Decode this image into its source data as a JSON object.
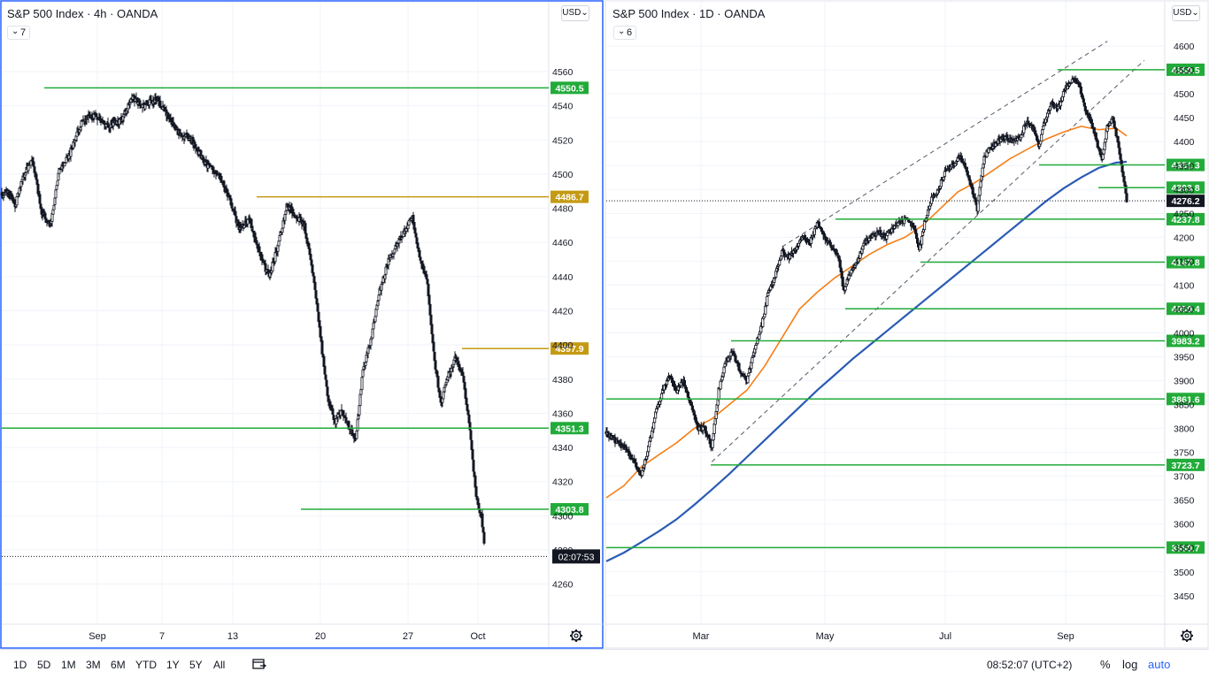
{
  "panes": [
    {
      "title": "S&P 500 Index · 4h · OANDA",
      "interval_count": "7",
      "currency": "USD",
      "countdown": "02:07:53"
    },
    {
      "title": "S&P 500 Index · 1D · OANDA",
      "interval_count": "6",
      "currency": "USD"
    }
  ],
  "colors": {
    "green_level": "#22ab3a",
    "gold_level": "#c49a12",
    "ma_orange": "#f57f17",
    "ma_blue": "#2a5bb4",
    "candle": "#131722",
    "last_price_bg": "#131722"
  },
  "chart_data": [
    {
      "type": "candlestick",
      "title": "S&P 500 Index · 4h · OANDA",
      "x_ticks": [
        "Sep",
        "7",
        "13",
        "20",
        "27",
        "Oct"
      ],
      "y_ticks": [
        4260,
        4280,
        4300,
        4320,
        4340,
        4360,
        4380,
        4400,
        4420,
        4440,
        4460,
        4480,
        4500,
        4520,
        4540,
        4560
      ],
      "ylim": [
        4250,
        4575
      ],
      "close_path": [
        [
          0,
          4487
        ],
        [
          8,
          4490
        ],
        [
          15,
          4482
        ],
        [
          25,
          4500
        ],
        [
          35,
          4508
        ],
        [
          45,
          4478
        ],
        [
          55,
          4470
        ],
        [
          65,
          4502
        ],
        [
          75,
          4510
        ],
        [
          90,
          4530
        ],
        [
          105,
          4535
        ],
        [
          120,
          4528
        ],
        [
          135,
          4532
        ],
        [
          148,
          4545
        ],
        [
          160,
          4540
        ],
        [
          175,
          4544
        ],
        [
          190,
          4532
        ],
        [
          200,
          4524
        ],
        [
          215,
          4520
        ],
        [
          230,
          4506
        ],
        [
          245,
          4500
        ],
        [
          258,
          4485
        ],
        [
          268,
          4468
        ],
        [
          280,
          4474
        ],
        [
          292,
          4452
        ],
        [
          302,
          4440
        ],
        [
          312,
          4458
        ],
        [
          322,
          4482
        ],
        [
          332,
          4476
        ],
        [
          342,
          4470
        ],
        [
          352,
          4440
        ],
        [
          360,
          4405
        ],
        [
          368,
          4370
        ],
        [
          376,
          4355
        ],
        [
          384,
          4362
        ],
        [
          392,
          4352
        ],
        [
          400,
          4345
        ],
        [
          408,
          4385
        ],
        [
          418,
          4405
        ],
        [
          426,
          4430
        ],
        [
          436,
          4448
        ],
        [
          446,
          4458
        ],
        [
          456,
          4468
        ],
        [
          464,
          4475
        ],
        [
          472,
          4452
        ],
        [
          480,
          4440
        ],
        [
          488,
          4395
        ],
        [
          496,
          4365
        ],
        [
          504,
          4382
        ],
        [
          512,
          4392
        ],
        [
          520,
          4384
        ],
        [
          528,
          4355
        ],
        [
          536,
          4310
        ],
        [
          542,
          4300
        ],
        [
          545,
          4283
        ]
      ],
      "levels": [
        {
          "label": "4550.5",
          "value": 4550.5,
          "color": "#22ab3a"
        },
        {
          "label": "4486.7",
          "value": 4486.7,
          "color": "#c49a12"
        },
        {
          "label": "4397.9",
          "value": 4397.9,
          "color": "#c49a12"
        },
        {
          "label": "4351.3",
          "value": 4351.3,
          "color": "#22ab3a"
        },
        {
          "label": "4303.8",
          "value": 4303.8,
          "color": "#22ab3a"
        }
      ],
      "last_price": 4276.2
    },
    {
      "type": "candlestick",
      "title": "S&P 500 Index · 1D · OANDA",
      "x_ticks": [
        "Mar",
        "May",
        "Jul",
        "Sep"
      ],
      "y_ticks": [
        3450,
        3500,
        3550,
        3600,
        3650,
        3700,
        3750,
        3800,
        3850,
        3900,
        3950,
        4000,
        4050,
        4100,
        4150,
        4200,
        4250,
        4300,
        4350,
        4400,
        4450,
        4500,
        4550,
        4600
      ],
      "ylim": [
        3420,
        4615
      ],
      "close_path": [
        [
          0,
          3790
        ],
        [
          10,
          3775
        ],
        [
          20,
          3760
        ],
        [
          30,
          3735
        ],
        [
          40,
          3700
        ],
        [
          48,
          3760
        ],
        [
          56,
          3830
        ],
        [
          64,
          3880
        ],
        [
          72,
          3910
        ],
        [
          80,
          3880
        ],
        [
          88,
          3900
        ],
        [
          96,
          3850
        ],
        [
          104,
          3800
        ],
        [
          112,
          3800
        ],
        [
          120,
          3760
        ],
        [
          128,
          3880
        ],
        [
          136,
          3940
        ],
        [
          144,
          3960
        ],
        [
          152,
          3920
        ],
        [
          160,
          3900
        ],
        [
          168,
          3960
        ],
        [
          176,
          4010
        ],
        [
          184,
          4080
        ],
        [
          192,
          4120
        ],
        [
          200,
          4170
        ],
        [
          208,
          4160
        ],
        [
          216,
          4180
        ],
        [
          224,
          4200
        ],
        [
          232,
          4190
        ],
        [
          240,
          4230
        ],
        [
          248,
          4200
        ],
        [
          256,
          4180
        ],
        [
          264,
          4160
        ],
        [
          270,
          4090
        ],
        [
          278,
          4130
        ],
        [
          286,
          4150
        ],
        [
          294,
          4190
        ],
        [
          302,
          4200
        ],
        [
          310,
          4210
        ],
        [
          318,
          4200
        ],
        [
          326,
          4220
        ],
        [
          334,
          4230
        ],
        [
          342,
          4240
        ],
        [
          350,
          4220
        ],
        [
          356,
          4170
        ],
        [
          362,
          4230
        ],
        [
          370,
          4280
        ],
        [
          378,
          4300
        ],
        [
          386,
          4340
        ],
        [
          394,
          4350
        ],
        [
          402,
          4370
        ],
        [
          410,
          4340
        ],
        [
          416,
          4300
        ],
        [
          422,
          4260
        ],
        [
          430,
          4370
        ],
        [
          438,
          4390
        ],
        [
          446,
          4400
        ],
        [
          454,
          4410
        ],
        [
          462,
          4400
        ],
        [
          470,
          4410
        ],
        [
          478,
          4440
        ],
        [
          486,
          4430
        ],
        [
          492,
          4390
        ],
        [
          498,
          4440
        ],
        [
          506,
          4480
        ],
        [
          514,
          4470
        ],
        [
          522,
          4510
        ],
        [
          530,
          4530
        ],
        [
          538,
          4520
        ],
        [
          546,
          4460
        ],
        [
          552,
          4440
        ],
        [
          558,
          4400
        ],
        [
          564,
          4360
        ],
        [
          570,
          4430
        ],
        [
          576,
          4450
        ],
        [
          582,
          4400
        ],
        [
          588,
          4330
        ],
        [
          592,
          4276
        ]
      ],
      "ma_orange": [
        [
          0,
          3655
        ],
        [
          20,
          3680
        ],
        [
          40,
          3720
        ],
        [
          60,
          3745
        ],
        [
          80,
          3770
        ],
        [
          100,
          3800
        ],
        [
          120,
          3820
        ],
        [
          140,
          3850
        ],
        [
          160,
          3880
        ],
        [
          180,
          3930
        ],
        [
          200,
          3990
        ],
        [
          220,
          4050
        ],
        [
          240,
          4085
        ],
        [
          260,
          4115
        ],
        [
          280,
          4140
        ],
        [
          300,
          4165
        ],
        [
          320,
          4185
        ],
        [
          340,
          4200
        ],
        [
          360,
          4225
        ],
        [
          380,
          4260
        ],
        [
          400,
          4295
        ],
        [
          420,
          4315
        ],
        [
          440,
          4340
        ],
        [
          460,
          4365
        ],
        [
          480,
          4385
        ],
        [
          500,
          4405
        ],
        [
          520,
          4420
        ],
        [
          540,
          4432
        ],
        [
          560,
          4425
        ],
        [
          580,
          4428
        ],
        [
          592,
          4412
        ]
      ],
      "ma_blue": [
        [
          0,
          3522
        ],
        [
          20,
          3540
        ],
        [
          40,
          3562
        ],
        [
          60,
          3585
        ],
        [
          80,
          3610
        ],
        [
          100,
          3640
        ],
        [
          120,
          3672
        ],
        [
          140,
          3705
        ],
        [
          160,
          3740
        ],
        [
          180,
          3775
        ],
        [
          200,
          3810
        ],
        [
          220,
          3845
        ],
        [
          240,
          3880
        ],
        [
          260,
          3912
        ],
        [
          280,
          3945
        ],
        [
          300,
          3975
        ],
        [
          320,
          4005
        ],
        [
          340,
          4035
        ],
        [
          360,
          4065
        ],
        [
          380,
          4095
        ],
        [
          400,
          4125
        ],
        [
          420,
          4155
        ],
        [
          440,
          4185
        ],
        [
          460,
          4215
        ],
        [
          480,
          4245
        ],
        [
          500,
          4275
        ],
        [
          520,
          4302
        ],
        [
          540,
          4325
        ],
        [
          560,
          4345
        ],
        [
          580,
          4356
        ],
        [
          592,
          4358
        ]
      ],
      "trend_upper": [
        [
          200,
          4180
        ],
        [
          570,
          4610
        ]
      ],
      "trend_lower": [
        [
          120,
          3730
        ],
        [
          612,
          4570
        ]
      ],
      "levels": [
        {
          "label": "4550.5",
          "value": 4550.5,
          "color": "#22ab3a"
        },
        {
          "label": "4351.3",
          "value": 4351.3,
          "color": "#22ab3a"
        },
        {
          "label": "4303.8",
          "value": 4303.8,
          "color": "#22ab3a"
        },
        {
          "label": "4237.8",
          "value": 4237.8,
          "color": "#22ab3a"
        },
        {
          "label": "4147.8",
          "value": 4147.8,
          "color": "#22ab3a"
        },
        {
          "label": "4050.4",
          "value": 4050.4,
          "color": "#22ab3a"
        },
        {
          "label": "3983.2",
          "value": 3983.2,
          "color": "#22ab3a"
        },
        {
          "label": "3861.6",
          "value": 3861.6,
          "color": "#22ab3a"
        },
        {
          "label": "3723.7",
          "value": 3723.7,
          "color": "#22ab3a"
        },
        {
          "label": "3550.7",
          "value": 3550.7,
          "color": "#22ab3a"
        }
      ],
      "last_price": 4276.2
    }
  ],
  "bottom_bar": {
    "ranges": [
      "1D",
      "5D",
      "1M",
      "3M",
      "6M",
      "YTD",
      "1Y",
      "5Y",
      "All"
    ],
    "clock": "08:52:07 (UTC+2)",
    "percent_label": "%",
    "log_label": "log",
    "auto_label": "auto"
  }
}
